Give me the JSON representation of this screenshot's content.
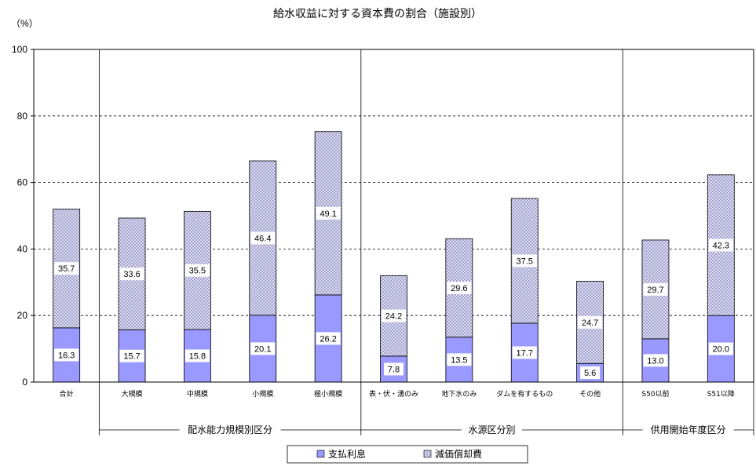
{
  "chart_data": {
    "type": "bar",
    "stacked": true,
    "title": "給水収益に対する資本費の割合（施設別）",
    "ylabel": "（%）",
    "ylim": [
      0,
      100
    ],
    "yticks": [
      0,
      20,
      40,
      60,
      80,
      100
    ],
    "grid": true,
    "legend_position": "bottom",
    "categories": [
      "合計",
      "大規模",
      "中規模",
      "小規模",
      "極小規模",
      "表・伏・湧のみ",
      "地下水のみ",
      "ダムを有するもの",
      "その他",
      "S50以前",
      "S51以降"
    ],
    "groups": [
      {
        "label": "配水能力規模別区分",
        "categories": [
          "大規模",
          "中規模",
          "小規模",
          "極小規模"
        ]
      },
      {
        "label": "水源区分別",
        "categories": [
          "表・伏・湧のみ",
          "地下水のみ",
          "ダムを有するもの",
          "その他"
        ]
      },
      {
        "label": "供用開始年度区分",
        "categories": [
          "S50以前",
          "S51以降"
        ]
      }
    ],
    "series": [
      {
        "name": "支払利息",
        "color": "#9999ff",
        "values": [
          16.3,
          15.7,
          15.8,
          20.1,
          26.2,
          7.8,
          13.5,
          17.7,
          5.6,
          13.0,
          20.0
        ]
      },
      {
        "name": "減価償却費",
        "color": "#ccccff",
        "pattern": "hatched",
        "values": [
          35.7,
          33.6,
          35.5,
          46.4,
          49.1,
          24.2,
          29.6,
          37.5,
          24.7,
          29.7,
          42.3
        ]
      }
    ],
    "value_labels": [
      [
        "16.3",
        "15.7",
        "15.8",
        "20.1",
        "26.2",
        "7.8",
        "13.5",
        "17.7",
        "5.6",
        "13.0",
        "20.0"
      ],
      [
        "35.7",
        "33.6",
        "35.5",
        "46.4",
        "49.1",
        "24.2",
        "29.6",
        "37.5",
        "24.7",
        "29.7",
        "42.3"
      ]
    ]
  }
}
